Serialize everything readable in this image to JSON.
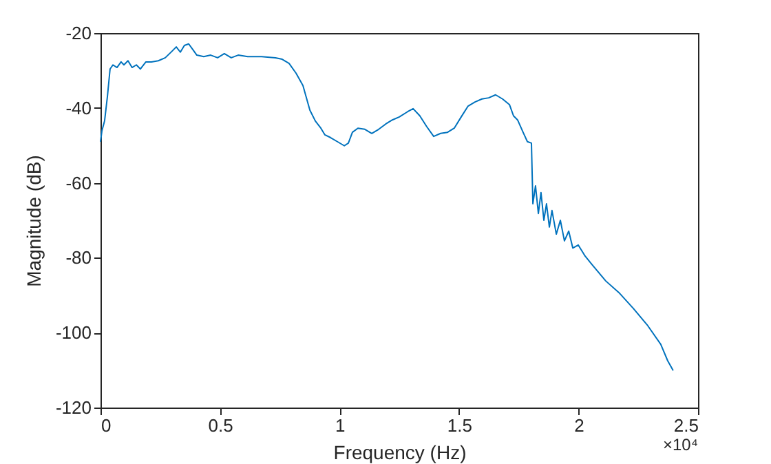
{
  "chart_data": {
    "type": "line",
    "xlabel": "Frequency (Hz)",
    "ylabel": "Magnitude (dB)",
    "xlim": [
      0,
      2.5
    ],
    "xticks": [
      0,
      0.5,
      1,
      1.5,
      2,
      2.5
    ],
    "ylim": [
      -120,
      -20
    ],
    "yticks": [
      -120,
      -100,
      -80,
      -60,
      -40,
      -20
    ],
    "grid": false,
    "annotations": [
      "×10⁴"
    ],
    "series": [
      {
        "color": "#0072bd",
        "x": [
          0,
          0.006,
          0.017,
          0.029,
          0.04,
          0.052,
          0.069,
          0.086,
          0.098,
          0.115,
          0.132,
          0.15,
          0.167,
          0.19,
          0.213,
          0.242,
          0.271,
          0.3,
          0.317,
          0.334,
          0.351,
          0.369,
          0.386,
          0.403,
          0.432,
          0.461,
          0.49,
          0.518,
          0.547,
          0.576,
          0.616,
          0.674,
          0.732,
          0.76,
          0.789,
          0.818,
          0.847,
          0.876,
          0.899,
          0.922,
          0.939,
          0.962,
          0.991,
          1.02,
          1.037,
          1.054,
          1.077,
          1.106,
          1.135,
          1.164,
          1.193,
          1.221,
          1.25,
          1.285,
          1.308,
          1.336,
          1.365,
          1.394,
          1.423,
          1.452,
          1.48,
          1.509,
          1.538,
          1.567,
          1.596,
          1.624,
          1.653,
          1.682,
          1.711,
          1.728,
          1.745,
          1.768,
          1.786,
          1.803,
          1.809,
          1.82,
          1.832,
          1.843,
          1.855,
          1.866,
          1.878,
          1.889,
          1.907,
          1.924,
          1.941,
          1.959,
          1.976,
          1.999,
          2.028,
          2.056,
          2.114,
          2.172,
          2.229,
          2.287,
          2.344,
          2.373,
          2.396
        ],
        "values": [
          -49.0,
          -46.1,
          -43.5,
          -36.9,
          -29.6,
          -28.5,
          -29.2,
          -27.7,
          -28.5,
          -27.4,
          -29.2,
          -28.5,
          -29.6,
          -27.7,
          -27.7,
          -27.4,
          -26.6,
          -24.8,
          -23.7,
          -25.1,
          -23.3,
          -22.9,
          -24.4,
          -25.9,
          -26.3,
          -25.9,
          -26.6,
          -25.5,
          -26.6,
          -25.9,
          -26.3,
          -26.3,
          -26.6,
          -27.0,
          -28.1,
          -30.7,
          -34.0,
          -40.6,
          -43.5,
          -45.4,
          -47.2,
          -47.9,
          -49.0,
          -50.1,
          -49.4,
          -46.5,
          -45.4,
          -45.7,
          -46.8,
          -45.7,
          -44.3,
          -43.2,
          -42.4,
          -41.0,
          -40.2,
          -42.1,
          -45.0,
          -47.6,
          -46.8,
          -46.5,
          -45.4,
          -42.4,
          -39.5,
          -38.4,
          -37.6,
          -37.3,
          -36.5,
          -37.6,
          -39.1,
          -42.1,
          -43.2,
          -46.5,
          -49.0,
          -49.4,
          -65.6,
          -60.8,
          -68.2,
          -62.6,
          -70.0,
          -65.6,
          -71.8,
          -67.4,
          -73.7,
          -70.0,
          -75.5,
          -72.9,
          -77.4,
          -76.6,
          -79.6,
          -81.8,
          -86.2,
          -89.5,
          -93.5,
          -97.9,
          -103.1,
          -107.5,
          -110.1
        ]
      }
    ]
  }
}
